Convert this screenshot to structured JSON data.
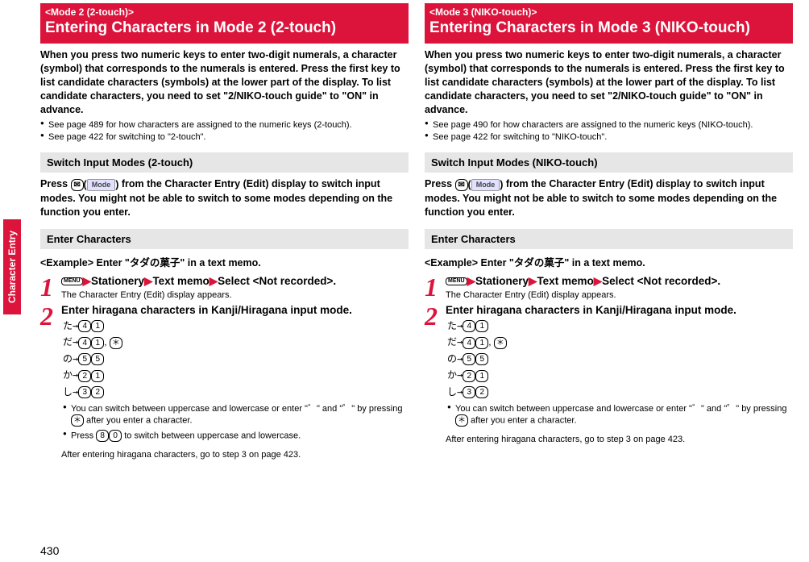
{
  "side_tab": "Character Entry",
  "page_number": "430",
  "left": {
    "banner_small": "<Mode 2 (2-touch)>",
    "banner_big": "Entering Characters in Mode 2 (2-touch)",
    "intro": "When you press two numeric keys to enter two-digit numerals, a character (symbol) that corresponds to the numerals is entered. Press the first key to list candidate characters (symbols) at the lower part of the display. To list candidate characters, you need to set \"2/NIKO-touch guide\" to \"ON\" in advance.",
    "b1": "See page 489 for how characters are assigned to the numeric keys (2-touch).",
    "b2": "See page 422 for switching to \"2-touch\".",
    "h1": "Switch Input Modes (2-touch)",
    "para1_a": "Press ",
    "para1_b": " from the Character Entry (Edit) display to switch input modes. You might not be able to switch to some modes depending on the function you enter.",
    "h2": "Enter Characters",
    "example": "<Example> Enter \"タダの菓子\" in a text memo.",
    "step1_menu": "MENU",
    "step1_a": "Stationery",
    "step1_b": "Text memo",
    "step1_c": "Select <Not recorded>.",
    "step1_sub": "The Character Entry (Edit) display appears.",
    "step2_title": "Enter hiragana characters in Kanji/Hiragana input mode.",
    "kr1_j": "た→",
    "kr1_k1": "4",
    "kr1_k2": "1",
    "kr2_j": "だ→",
    "kr2_k1": "4",
    "kr2_k2": "1",
    "kr2_k3": "＊",
    "kr3_j": "の→",
    "kr3_k1": "5",
    "kr3_k2": "5",
    "kr4_j": "か→",
    "kr4_k1": "2",
    "kr4_k2": "1",
    "kr5_j": "し→",
    "kr5_k1": "3",
    "kr5_k2": "2",
    "sb1_a": "You can switch between uppercase and lowercase or enter \"゛\" and \"゜\" by pressing ",
    "sb1_key": "＊",
    "sb1_b": " after you enter a character.",
    "sb2_a": "Press ",
    "sb2_k1": "8",
    "sb2_k2": "0",
    "sb2_b": " to switch between uppercase and lowercase.",
    "after": "After entering hiragana characters, go to step 3 on page 423.",
    "mail_icon": "✉",
    "mode_label": "Mode"
  },
  "right": {
    "banner_small": "<Mode 3 (NIKO-touch)>",
    "banner_big": "Entering Characters in Mode 3 (NIKO-touch)",
    "intro": "When you press two numeric keys to enter two-digit numerals, a character (symbol) that corresponds to the numerals is entered. Press the first key to list candidate characters (symbols) at the lower part of the display. To list candidate characters, you need to set \"2/NIKO-touch guide\" to \"ON\" in advance.",
    "b1": "See page 490 for how characters are assigned to the numeric keys (NIKO-touch).",
    "b2": "See page 422 for switching to \"NIKO-touch\".",
    "h1": "Switch Input Modes (NIKO-touch)",
    "para1_a": "Press ",
    "para1_b": " from the Character Entry (Edit) display to switch input modes. You might not be able to switch to some modes depending on the function you enter.",
    "h2": "Enter Characters",
    "example": "<Example> Enter \"タダの菓子\" in a text memo.",
    "step1_menu": "MENU",
    "step1_a": "Stationery",
    "step1_b": "Text memo",
    "step1_c": "Select <Not recorded>.",
    "step1_sub": "The Character Entry (Edit) display appears.",
    "step2_title": "Enter hiragana characters in Kanji/Hiragana input mode.",
    "kr1_j": "た→",
    "kr1_k1": "4",
    "kr1_k2": "1",
    "kr2_j": "だ→",
    "kr2_k1": "4",
    "kr2_k2": "1",
    "kr2_k3": "＊",
    "kr3_j": "の→",
    "kr3_k1": "5",
    "kr3_k2": "5",
    "kr4_j": "か→",
    "kr4_k1": "2",
    "kr4_k2": "1",
    "kr5_j": "し→",
    "kr5_k1": "3",
    "kr5_k2": "2",
    "sb1_a": "You can switch between uppercase and lowercase or enter \"゛\" and \"゜\" by pressing ",
    "sb1_key": "＊",
    "sb1_b": " after you enter a character.",
    "after": "After entering hiragana characters, go to step 3 on page 423.",
    "mail_icon": "✉",
    "mode_label": "Mode"
  }
}
